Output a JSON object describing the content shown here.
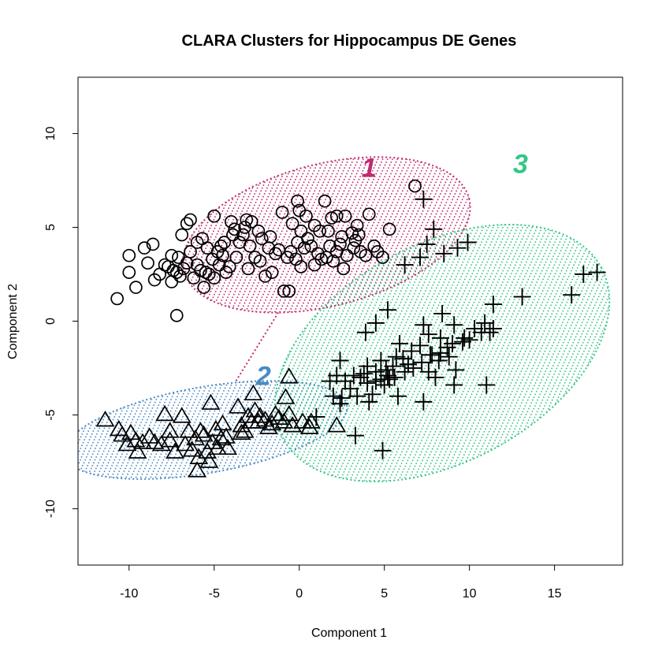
{
  "chart_data": {
    "type": "scatter",
    "title": "CLARA Clusters for Hippocampus DE Genes",
    "xlabel": "Component 1",
    "ylabel": "Component 2",
    "xlim": [
      -13,
      19
    ],
    "ylim": [
      -13,
      13
    ],
    "xticks": [
      -10,
      -5,
      0,
      5,
      10,
      15
    ],
    "yticks": [
      -10,
      -5,
      0,
      5,
      10
    ],
    "grid": false,
    "legend": "none",
    "clusters": [
      {
        "label": "1",
        "marker": "circle",
        "shade_color": "#c02a6f",
        "ellipse": {
          "center": [
            1.6,
            4.6
          ],
          "semi_axes": [
            8.6,
            3.8
          ],
          "angle_deg": 13
        },
        "label_pos": [
          4.1,
          8.2
        ],
        "points": [
          [
            -10.7,
            1.2
          ],
          [
            -10,
            2.6
          ],
          [
            -9.6,
            1.8
          ],
          [
            -9.1,
            3.9
          ],
          [
            -8.9,
            3.1
          ],
          [
            -8.5,
            2.2
          ],
          [
            -8.2,
            2.5
          ],
          [
            -7.9,
            3.0
          ],
          [
            -7.7,
            2.9
          ],
          [
            -7.5,
            2.1
          ],
          [
            -7.4,
            2.7
          ],
          [
            -7.2,
            2.6
          ],
          [
            -7.0,
            2.4
          ],
          [
            -6.8,
            2.8
          ],
          [
            -7.1,
            3.4
          ],
          [
            -6.6,
            3.1
          ],
          [
            -6.9,
            4.6
          ],
          [
            -6.6,
            5.2
          ],
          [
            -6.4,
            5.4
          ],
          [
            -6.2,
            2.3
          ],
          [
            -6.0,
            4.2
          ],
          [
            -5.8,
            2.7
          ],
          [
            -5.7,
            4.4
          ],
          [
            -5.5,
            2.6
          ],
          [
            -5.4,
            3.9
          ],
          [
            -5.3,
            2.5
          ],
          [
            -5.1,
            3.3
          ],
          [
            -5.0,
            2.3
          ],
          [
            -4.8,
            3.7
          ],
          [
            -4.7,
            3.0
          ],
          [
            -4.6,
            4.0
          ],
          [
            -4.4,
            4.2
          ],
          [
            -4.3,
            2.6
          ],
          [
            -4.1,
            2.9
          ],
          [
            -4.0,
            5.3
          ],
          [
            -3.8,
            4.9
          ],
          [
            -3.7,
            3.4
          ],
          [
            -3.5,
            4.2
          ],
          [
            -3.3,
            4.6
          ],
          [
            -3.2,
            5.0
          ],
          [
            -3.0,
            2.8
          ],
          [
            -2.9,
            4.0
          ],
          [
            -2.8,
            5.3
          ],
          [
            -2.6,
            3.4
          ],
          [
            -2.4,
            4.8
          ],
          [
            -2.2,
            4.4
          ],
          [
            -2.0,
            2.4
          ],
          [
            -1.8,
            3.9
          ],
          [
            -1.7,
            4.5
          ],
          [
            -1.6,
            2.6
          ],
          [
            -1.4,
            3.6
          ],
          [
            -1.0,
            5.8
          ],
          [
            -0.9,
            1.6
          ],
          [
            -0.6,
            1.6
          ],
          [
            -0.5,
            3.7
          ],
          [
            -0.4,
            5.2
          ],
          [
            -0.2,
            3.3
          ],
          [
            -0.1,
            4.2
          ],
          [
            -0.1,
            6.4
          ],
          [
            0.0,
            5.9
          ],
          [
            0.1,
            2.9
          ],
          [
            0.1,
            4.8
          ],
          [
            0.3,
            3.9
          ],
          [
            0.5,
            4.4
          ],
          [
            0.7,
            4.0
          ],
          [
            0.9,
            5.1
          ],
          [
            1.1,
            3.6
          ],
          [
            1.2,
            4.8
          ],
          [
            1.3,
            3.3
          ],
          [
            1.5,
            6.4
          ],
          [
            1.6,
            3.4
          ],
          [
            1.8,
            4.0
          ],
          [
            1.9,
            5.5
          ],
          [
            2.0,
            3.2
          ],
          [
            2.2,
            3.7
          ],
          [
            2.4,
            4.1
          ],
          [
            2.5,
            4.5
          ],
          [
            2.6,
            2.8
          ],
          [
            2.7,
            5.6
          ],
          [
            2.8,
            3.5
          ],
          [
            3.1,
            4.7
          ],
          [
            3.2,
            3.9
          ],
          [
            3.4,
            5.1
          ],
          [
            3.5,
            4.6
          ],
          [
            3.6,
            3.7
          ],
          [
            3.9,
            3.5
          ],
          [
            4.1,
            5.7
          ],
          [
            4.4,
            4.0
          ],
          [
            4.6,
            3.7
          ],
          [
            5.3,
            4.9
          ],
          [
            6.8,
            7.2
          ],
          [
            -7.2,
            0.3
          ],
          [
            -10.0,
            3.5
          ],
          [
            -8.6,
            4.1
          ],
          [
            -7.5,
            3.5
          ],
          [
            -6.0,
            3.0
          ],
          [
            -5.0,
            5.6
          ],
          [
            -4.5,
            3.5
          ],
          [
            -3.9,
            4.6
          ],
          [
            -2.3,
            3.2
          ],
          [
            -0.7,
            3.4
          ],
          [
            0.9,
            3.0
          ],
          [
            2.2,
            5.6
          ],
          [
            3.3,
            4.3
          ],
          [
            4.9,
            3.4
          ],
          [
            -6.4,
            3.7
          ],
          [
            -5.6,
            1.8
          ],
          [
            -3.1,
            5.4
          ],
          [
            -1.2,
            3.8
          ],
          [
            0.4,
            5.6
          ],
          [
            1.7,
            4.8
          ]
        ]
      },
      {
        "label": "2",
        "marker": "triangle",
        "shade_color": "#4a8bc4",
        "ellipse": {
          "center": [
            -5.5,
            -5.8
          ],
          "semi_axes": [
            8.4,
            2.3
          ],
          "angle_deg": 9
        },
        "label_pos": [
          -2.1,
          -2.9
        ],
        "points": [
          [
            -11.4,
            -5.3
          ],
          [
            -10.6,
            -5.8
          ],
          [
            -10.4,
            -6.1
          ],
          [
            -10.1,
            -6.6
          ],
          [
            -9.9,
            -6.0
          ],
          [
            -9.6,
            -6.4
          ],
          [
            -9.2,
            -6.5
          ],
          [
            -8.8,
            -6.2
          ],
          [
            -8.5,
            -6.5
          ],
          [
            -8.1,
            -6.6
          ],
          [
            -7.9,
            -5.0
          ],
          [
            -7.6,
            -6.4
          ],
          [
            -7.3,
            -7.0
          ],
          [
            -6.9,
            -5.1
          ],
          [
            -6.7,
            -6.6
          ],
          [
            -6.5,
            -5.9
          ],
          [
            -6.3,
            -6.9
          ],
          [
            -6.1,
            -6.3
          ],
          [
            -5.9,
            -7.3
          ],
          [
            -5.8,
            -5.9
          ],
          [
            -5.6,
            -6.1
          ],
          [
            -5.4,
            -7.0
          ],
          [
            -5.2,
            -4.4
          ],
          [
            -5.1,
            -6.5
          ],
          [
            -4.9,
            -5.8
          ],
          [
            -4.8,
            -6.8
          ],
          [
            -4.6,
            -6.3
          ],
          [
            -4.5,
            -5.5
          ],
          [
            -4.3,
            -6.2
          ],
          [
            -4.2,
            -6.8
          ],
          [
            -3.6,
            -4.6
          ],
          [
            -3.4,
            -5.6
          ],
          [
            -3.2,
            -5.9
          ],
          [
            -3.0,
            -5.1
          ],
          [
            -2.8,
            -5.4
          ],
          [
            -2.7,
            -3.9
          ],
          [
            -2.6,
            -4.8
          ],
          [
            -2.4,
            -5.4
          ],
          [
            -2.0,
            -5.3
          ],
          [
            -1.8,
            -5.7
          ],
          [
            -1.6,
            -5.5
          ],
          [
            -1.4,
            -5.0
          ],
          [
            -1.2,
            -5.2
          ],
          [
            -0.9,
            -5.4
          ],
          [
            -0.8,
            -4.1
          ],
          [
            -0.6,
            -5.0
          ],
          [
            -0.4,
            -5.6
          ],
          [
            -0.6,
            -3.0
          ],
          [
            0.2,
            -5.4
          ],
          [
            0.6,
            -5.7
          ],
          [
            0.7,
            -5.4
          ],
          [
            2.2,
            -5.6
          ],
          [
            -6.0,
            -8.0
          ],
          [
            -9.5,
            -7.0
          ],
          [
            -5.3,
            -7.5
          ],
          [
            -3.4,
            -6.0
          ],
          [
            -7.6,
            -5.9
          ],
          [
            -2.3,
            -5.1
          ]
        ]
      },
      {
        "label": "3",
        "marker": "plus",
        "shade_color": "#35c585",
        "ellipse": {
          "center": [
            8.4,
            -1.7
          ],
          "semi_axes": [
            10.4,
            5.9
          ],
          "angle_deg": 26
        },
        "label_pos": [
          13.0,
          8.4
        ],
        "points": [
          [
            7.3,
            6.5
          ],
          [
            7.9,
            4.9
          ],
          [
            7.5,
            4.1
          ],
          [
            7.1,
            3.4
          ],
          [
            8.5,
            3.6
          ],
          [
            9.3,
            3.9
          ],
          [
            9.9,
            4.2
          ],
          [
            6.2,
            3.0
          ],
          [
            16.7,
            2.5
          ],
          [
            17.5,
            2.6
          ],
          [
            16.0,
            1.4
          ],
          [
            13.1,
            1.3
          ],
          [
            11.4,
            0.9
          ],
          [
            8.4,
            0.4
          ],
          [
            5.2,
            0.6
          ],
          [
            4.5,
            -0.1
          ],
          [
            3.9,
            -0.6
          ],
          [
            5.9,
            -1.2
          ],
          [
            7.3,
            -0.2
          ],
          [
            7.6,
            -0.7
          ],
          [
            8.3,
            -0.9
          ],
          [
            9.1,
            -0.2
          ],
          [
            9.7,
            -0.9
          ],
          [
            10.3,
            -0.4
          ],
          [
            10.9,
            -0.1
          ],
          [
            11.2,
            -0.6
          ],
          [
            11.4,
            -0.4
          ],
          [
            10.7,
            -0.6
          ],
          [
            10.0,
            -1.0
          ],
          [
            9.6,
            -1.1
          ],
          [
            9.0,
            -1.2
          ],
          [
            8.7,
            -1.4
          ],
          [
            8.3,
            -1.7
          ],
          [
            7.8,
            -1.8
          ],
          [
            7.1,
            -1.3
          ],
          [
            6.6,
            -1.6
          ],
          [
            6.1,
            -2.0
          ],
          [
            5.7,
            -1.9
          ],
          [
            5.5,
            -2.4
          ],
          [
            5.1,
            -2.6
          ],
          [
            4.8,
            -2.1
          ],
          [
            4.5,
            -2.7
          ],
          [
            4.0,
            -2.4
          ],
          [
            3.8,
            -2.8
          ],
          [
            3.6,
            -3.0
          ],
          [
            3.2,
            -2.9
          ],
          [
            2.7,
            -3.2
          ],
          [
            2.4,
            -2.1
          ],
          [
            2.2,
            -2.9
          ],
          [
            1.8,
            -3.2
          ],
          [
            2.0,
            -4.0
          ],
          [
            2.5,
            -4.1
          ],
          [
            3.0,
            -3.6
          ],
          [
            3.4,
            -4.0
          ],
          [
            4.0,
            -3.3
          ],
          [
            4.5,
            -3.2
          ],
          [
            5.0,
            -3.4
          ],
          [
            5.6,
            -3.0
          ],
          [
            6.2,
            -2.7
          ],
          [
            6.7,
            -2.5
          ],
          [
            7.2,
            -2.2
          ],
          [
            7.6,
            -2.7
          ],
          [
            8.2,
            -2.1
          ],
          [
            8.8,
            -1.9
          ],
          [
            9.2,
            -2.6
          ],
          [
            5.8,
            -4.0
          ],
          [
            5.3,
            -3.1
          ],
          [
            4.1,
            -4.3
          ],
          [
            2.4,
            -4.4
          ],
          [
            7.3,
            -4.3
          ],
          [
            8.0,
            -3.0
          ],
          [
            9.1,
            -3.4
          ],
          [
            11.0,
            -3.4
          ],
          [
            7.7,
            -1.8
          ],
          [
            4.3,
            -3.9
          ],
          [
            3.3,
            -6.1
          ],
          [
            4.9,
            -6.9
          ],
          [
            1.0,
            -5.1
          ],
          [
            5.2,
            -2.9
          ],
          [
            6.4,
            -2.3
          ],
          [
            4.8,
            -3.1
          ]
        ]
      }
    ]
  }
}
